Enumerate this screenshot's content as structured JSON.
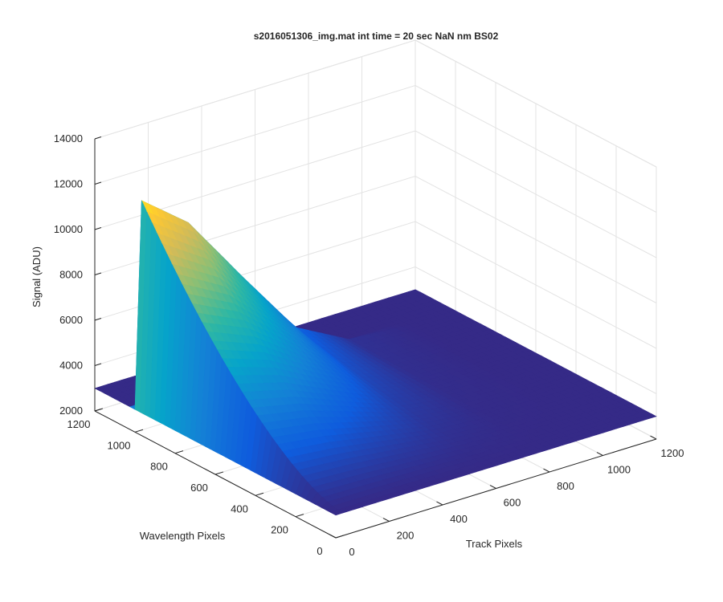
{
  "chart_data": {
    "type": "surface",
    "title": "s2016051306_img.mat int time = 20 sec  NaN nm BS02",
    "xlabel": "Track Pixels",
    "ylabel": "Wavelength Pixels",
    "zlabel": "Signal (ADU)",
    "xlim": [
      0,
      1200
    ],
    "ylim": [
      0,
      1200
    ],
    "zlim": [
      2000,
      14000
    ],
    "xticks": [
      "0",
      "200",
      "400",
      "600",
      "800",
      "1000",
      "1200"
    ],
    "yticks": [
      "0",
      "200",
      "400",
      "600",
      "800",
      "1000",
      "1200"
    ],
    "zticks": [
      "2000",
      "4000",
      "6000",
      "8000",
      "10000",
      "12000",
      "14000"
    ],
    "grid": true,
    "colormap": "parula",
    "colormap_stops": [
      "#352a87",
      "#0f5cdd",
      "#1481d6",
      "#06a4ca",
      "#2eb7a4",
      "#87bf77",
      "#d1bb59",
      "#fec832",
      "#f9fb0e"
    ],
    "background_level": 3000,
    "peak_level": 12700,
    "peak_position": {
      "track_pixel": 1,
      "wavelength_pixel": 1024
    },
    "illuminated_region": {
      "track_pixels": [
        1,
        1024
      ],
      "wavelength_pixels": [
        1,
        1024
      ]
    },
    "profile_samples": [
      {
        "track_pixel": 1,
        "signal": 12700
      },
      {
        "track_pixel": 200,
        "signal": 10800
      },
      {
        "track_pixel": 400,
        "signal": 7600
      },
      {
        "track_pixel": 600,
        "signal": 4500
      },
      {
        "track_pixel": 800,
        "signal": 3200
      },
      {
        "track_pixel": 1024,
        "signal": 3000
      }
    ]
  }
}
